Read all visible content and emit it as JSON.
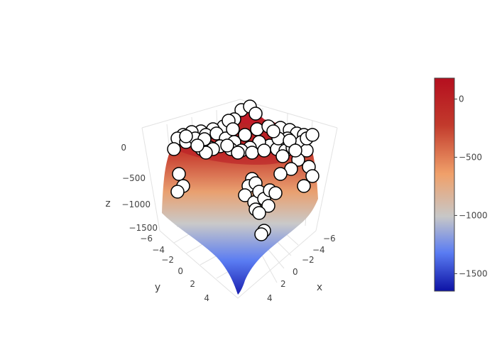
{
  "chart_data": {
    "type": "surface",
    "title": "",
    "scene": {
      "x_axis": {
        "title": "x",
        "ticks": [
          "−6",
          "−4",
          "−2",
          "0",
          "2",
          "4"
        ]
      },
      "y_axis": {
        "title": "y",
        "ticks": [
          "−6",
          "−4",
          "−2",
          "0",
          "2",
          "4"
        ]
      },
      "z_axis": {
        "title": "z",
        "ticks": [
          "0",
          "−500",
          "−1000",
          "−1500"
        ]
      },
      "grid": true
    },
    "surface": {
      "colorscale": [
        "#0d12a5",
        "#5a7cf2",
        "#c7c7c7",
        "#f0a06a",
        "#c23a2c",
        "#b50f1f"
      ],
      "cmin": -1650,
      "cmax": 180
    },
    "markers": {
      "symbol": "circle",
      "fill": "#ffffff",
      "stroke": "#000000",
      "count": 80
    },
    "colorbar": {
      "ticks": [
        "0",
        "−500",
        "−1000",
        "−1500"
      ],
      "tick_values": [
        0,
        -500,
        -1000,
        -1500
      ]
    }
  }
}
